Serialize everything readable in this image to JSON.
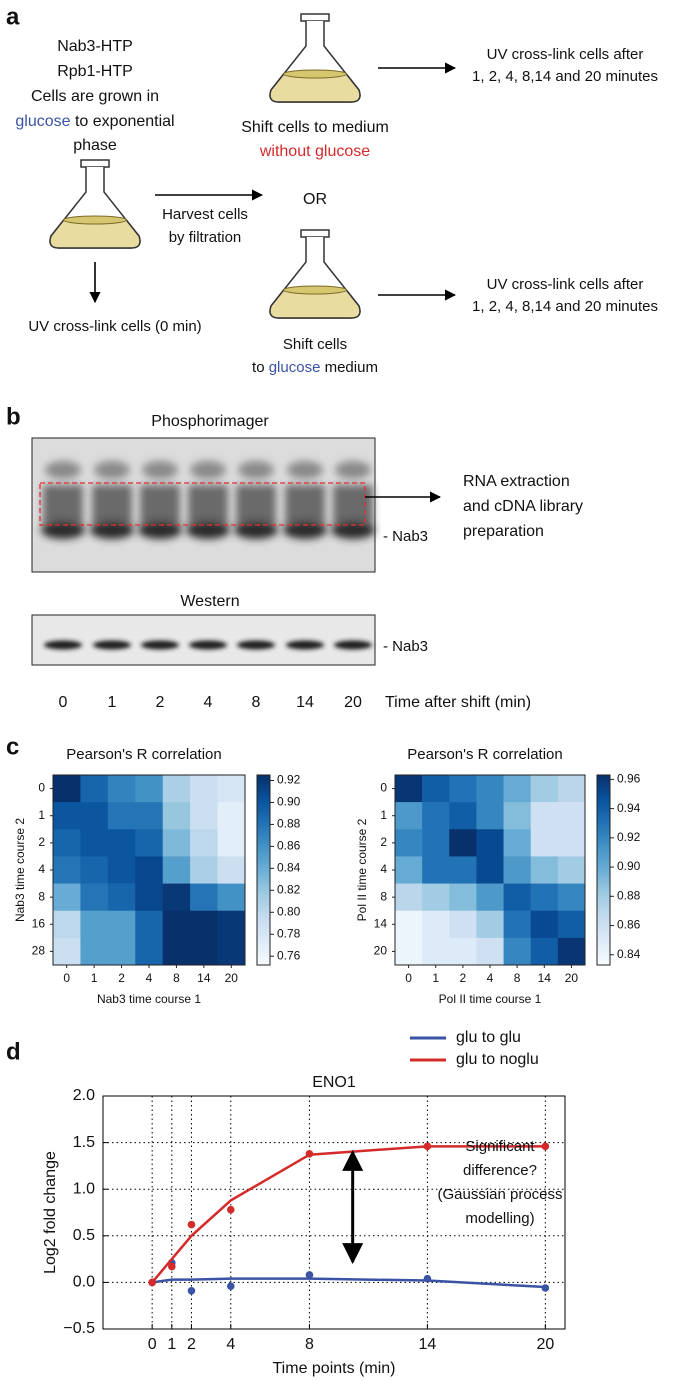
{
  "panel_a": {
    "label": "a",
    "strains": [
      "Nab3-HTP",
      "Rpb1-HTP"
    ],
    "grow": [
      "Cells are grown in",
      "glucose",
      " to exponential",
      "phase"
    ],
    "shift_noglu": [
      "Shift cells to medium",
      "without glucose"
    ],
    "uv_after": [
      "UV cross-link cells after",
      "1, 2, 4, 8,14 and 20 minutes"
    ],
    "harvest": [
      "Harvest cells",
      "by filtration"
    ],
    "or": "OR",
    "shift_glu": [
      "Shift cells",
      "to ",
      "glucose",
      " medium"
    ],
    "uv_zero": "UV cross-link cells (0 min)"
  },
  "panel_b": {
    "label": "b",
    "phosphor_title": "Phosphorimager",
    "western_title": "Western",
    "band_label": "- Nab3",
    "rna": [
      "RNA extraction",
      "and cDNA library",
      "preparation"
    ],
    "lanes": [
      "0",
      "1",
      "2",
      "4",
      "8",
      "14",
      "20"
    ],
    "time_label": "Time after shift (min)"
  },
  "panel_c": {
    "label": "c"
  },
  "panel_d": {
    "label": "d"
  },
  "chart_data": [
    {
      "type": "heatmap",
      "title": "Pearson's R correlation",
      "xlabel": "Nab3 time course 1",
      "ylabel": "Nab3 time course 2",
      "x_categories": [
        "0",
        "1",
        "2",
        "4",
        "8",
        "14",
        "20"
      ],
      "y_categories": [
        "0",
        "1",
        "2",
        "4",
        "8",
        "16",
        "28"
      ],
      "values": [
        [
          0.93,
          0.89,
          0.87,
          0.86,
          0.81,
          0.79,
          0.78
        ],
        [
          0.9,
          0.9,
          0.88,
          0.88,
          0.82,
          0.79,
          0.77
        ],
        [
          0.89,
          0.9,
          0.9,
          0.89,
          0.83,
          0.8,
          0.77
        ],
        [
          0.88,
          0.89,
          0.9,
          0.91,
          0.85,
          0.81,
          0.79
        ],
        [
          0.84,
          0.88,
          0.89,
          0.91,
          0.92,
          0.88,
          0.86
        ],
        [
          0.8,
          0.85,
          0.85,
          0.89,
          0.93,
          0.93,
          0.92
        ],
        [
          0.79,
          0.85,
          0.85,
          0.89,
          0.93,
          0.93,
          0.92
        ]
      ],
      "clim": [
        0.752,
        0.925
      ],
      "cticks": [
        0.92,
        {
          "value": 0.9,
          "label": "0.90"
        },
        0.88,
        0.86,
        0.84,
        0.82,
        {
          "value": 0.8,
          "label": "0.80"
        },
        0.78,
        0.76
      ],
      "colormap": [
        "#f7fbff",
        "#deebf7",
        "#c6dbef",
        "#9ecae1",
        "#6baed6",
        "#4292c6",
        "#2171b5",
        "#08519c",
        "#08306b"
      ]
    },
    {
      "type": "heatmap",
      "title": "Pearson's R correlation",
      "xlabel": "Pol II time course 1",
      "ylabel": "Pol II time course 2",
      "x_categories": [
        "0",
        "1",
        "2",
        "4",
        "8",
        "14",
        "20"
      ],
      "y_categories": [
        "0",
        "1",
        "2",
        "4",
        "8",
        "14",
        "20"
      ],
      "values": [
        [
          0.96,
          0.94,
          0.93,
          0.92,
          0.9,
          0.88,
          0.87
        ],
        [
          0.91,
          0.93,
          0.94,
          0.92,
          0.89,
          0.86,
          0.86
        ],
        [
          0.92,
          0.93,
          0.97,
          0.95,
          0.9,
          0.86,
          0.86
        ],
        [
          0.9,
          0.93,
          0.93,
          0.95,
          0.91,
          0.89,
          0.88
        ],
        [
          0.87,
          0.88,
          0.89,
          0.91,
          0.94,
          0.93,
          0.92
        ],
        [
          0.84,
          0.85,
          0.86,
          0.88,
          0.93,
          0.95,
          0.94
        ],
        [
          0.84,
          0.85,
          0.85,
          0.86,
          0.92,
          0.94,
          0.96
        ]
      ],
      "clim": [
        0.833,
        0.963
      ],
      "cticks": [
        0.96,
        0.94,
        0.92,
        {
          "value": 0.9,
          "label": "0.90"
        },
        0.88,
        0.86,
        0.84
      ],
      "colormap": [
        "#f7fbff",
        "#deebf7",
        "#c6dbef",
        "#9ecae1",
        "#6baed6",
        "#4292c6",
        "#2171b5",
        "#08519c",
        "#08306b"
      ]
    },
    {
      "type": "line",
      "title": "ENO1",
      "xlabel": "Time points (min)",
      "ylabel": "Log2 fold change",
      "x": [
        0,
        1,
        2,
        4,
        8,
        14,
        20
      ],
      "series": [
        {
          "name": "glu to glu",
          "color": "#3b53a4",
          "values": [
            0.0,
            0.03,
            0.03,
            0.04,
            0.04,
            0.02,
            -0.05
          ],
          "points": [
            0.0,
            0.21,
            -0.09,
            -0.04,
            0.08,
            0.04,
            -0.06
          ]
        },
        {
          "name": "glu to noglu",
          "color": "#d42a2a",
          "values": [
            0.0,
            0.25,
            0.5,
            0.88,
            1.37,
            1.46,
            1.46
          ],
          "points": [
            0.0,
            0.17,
            0.62,
            0.78,
            1.38,
            1.46,
            1.46
          ]
        }
      ],
      "xlim": [
        -2.5,
        21
      ],
      "ylim": [
        -0.5,
        2.0
      ],
      "xticks": [
        0,
        1,
        2,
        4,
        8,
        14,
        20
      ],
      "yticks": [
        {
          "value": -0.5,
          "label": "−0.5"
        },
        {
          "value": 0,
          "label": "0.0"
        },
        0.5,
        {
          "value": 1,
          "label": "1.0"
        },
        1.5,
        {
          "value": 2,
          "label": "2.0"
        }
      ],
      "grid": true,
      "legend": "top-right",
      "annotation": [
        "Significant",
        "difference?",
        "(Gaussian process",
        "modelling)"
      ]
    }
  ]
}
